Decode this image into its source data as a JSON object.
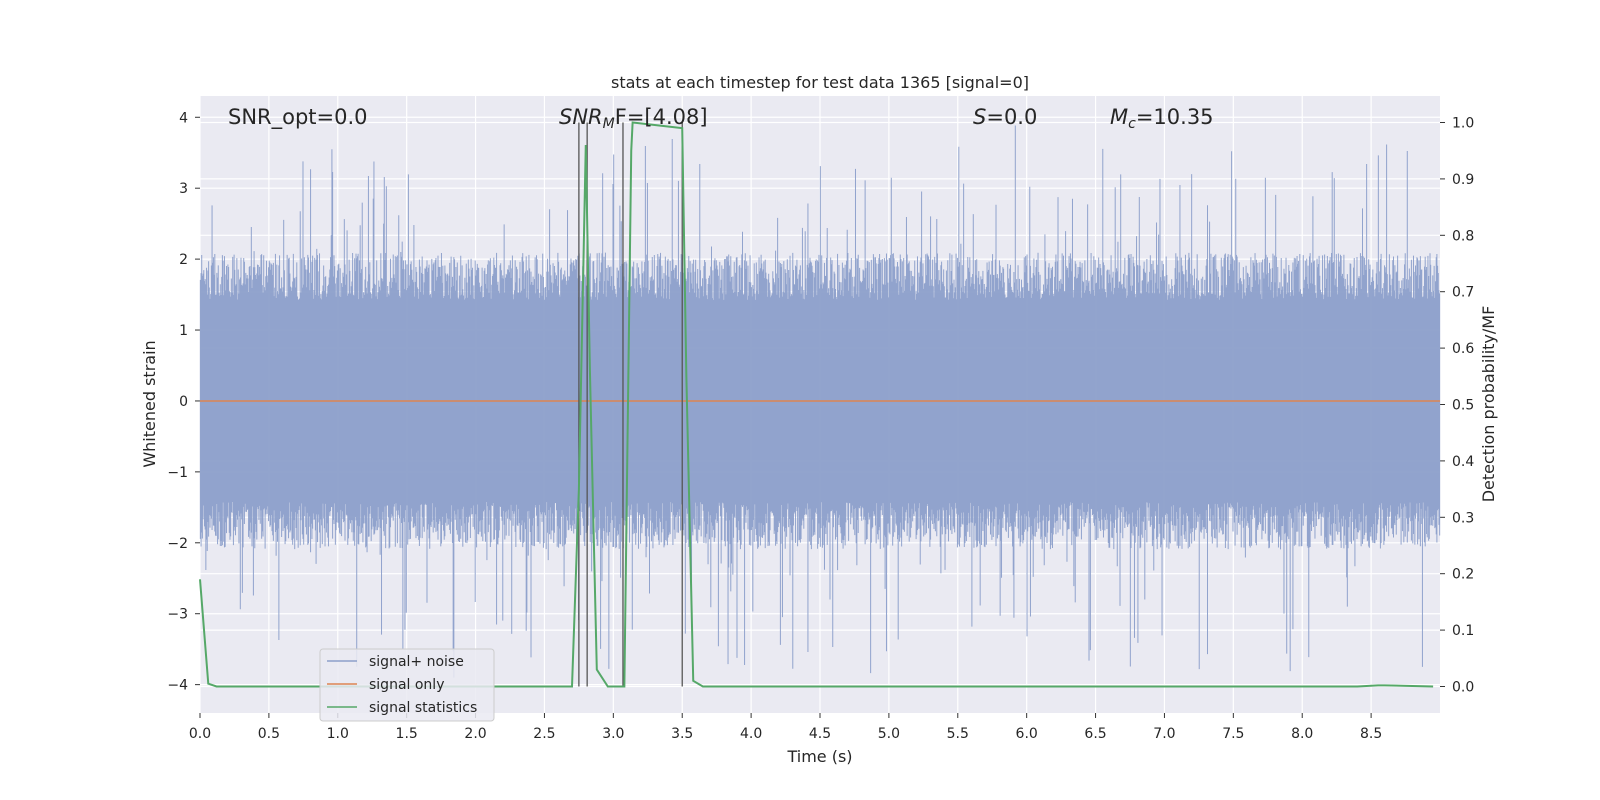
{
  "chart_data": {
    "type": "line",
    "title": "stats at each timestep for test data 1365 [signal=0]",
    "xlabel": "Time (s)",
    "ylabel_left": "Whitened strain",
    "ylabel_right": "Detection probability/MF",
    "xlim": [
      0.0,
      9.0
    ],
    "ylim_left": [
      -4.4,
      4.3
    ],
    "ylim_right": [
      -0.047,
      1.047
    ],
    "x_ticks": [
      "0.0",
      "0.5",
      "1.0",
      "1.5",
      "2.0",
      "2.5",
      "3.0",
      "3.5",
      "4.0",
      "4.5",
      "5.0",
      "5.5",
      "6.0",
      "6.5",
      "7.0",
      "7.5",
      "8.0",
      "8.5"
    ],
    "x_tick_values": [
      0.0,
      0.5,
      1.0,
      1.5,
      2.0,
      2.5,
      3.0,
      3.5,
      4.0,
      4.5,
      5.0,
      5.5,
      6.0,
      6.5,
      7.0,
      7.5,
      8.0,
      8.5
    ],
    "y_left_ticks": [
      "−4",
      "−3",
      "−2",
      "−1",
      "0",
      "1",
      "2",
      "3",
      "4"
    ],
    "y_left_tick_values": [
      -4,
      -3,
      -2,
      -1,
      0,
      1,
      2,
      3,
      4
    ],
    "y_right_ticks": [
      "0.0",
      "0.1",
      "0.2",
      "0.3",
      "0.4",
      "0.5",
      "0.6",
      "0.7",
      "0.8",
      "0.9",
      "1.0"
    ],
    "y_right_tick_values": [
      0.0,
      0.1,
      0.2,
      0.3,
      0.4,
      0.5,
      0.6,
      0.7,
      0.8,
      0.9,
      1.0
    ],
    "grid": true,
    "legend_position": "lower-left",
    "annotations": {
      "snr_opt": "SNR_opt=0.0",
      "snr_mf_main": "SNR",
      "snr_mf_sub": "M",
      "snr_mf_rest": "F=[4.08]",
      "s_var": "S",
      "s_rest": "=0.0",
      "mc_var": "M",
      "mc_sub": "c",
      "mc_rest": "=10.35"
    },
    "series": [
      {
        "name": "signal+ noise",
        "color": "#8c9fca",
        "axis": "left",
        "envelope": {
          "typical_amplitude": 1.9,
          "peak_amplitude": 3.9
        }
      },
      {
        "name": "signal only",
        "color": "#dd8452",
        "axis": "left",
        "values_constant": 0.0
      },
      {
        "name": "signal statistics",
        "color": "#55a868",
        "axis": "right",
        "x": [
          0.0,
          0.06,
          0.12,
          2.7,
          2.75,
          2.8,
          2.83,
          2.88,
          2.96,
          3.08,
          3.13,
          3.14,
          3.5,
          3.53,
          3.58,
          3.65,
          8.4,
          8.55,
          8.6,
          8.95
        ],
        "y": [
          0.19,
          0.005,
          0.0,
          0.0,
          0.35,
          0.96,
          0.56,
          0.03,
          0.0,
          0.0,
          0.95,
          1.0,
          0.99,
          0.55,
          0.01,
          0.0,
          0.0,
          0.002,
          0.002,
          0.0
        ]
      }
    ],
    "vertical_lines": [
      {
        "x": 2.75,
        "y_from": -0.0,
        "y_to": 1.0,
        "color": "#555555"
      },
      {
        "x": 2.81,
        "y_from": -0.0,
        "y_to": 1.0,
        "color": "#555555"
      },
      {
        "x": 3.07,
        "y_from": -0.0,
        "y_to": 1.0,
        "color": "#555555"
      },
      {
        "x": 3.5,
        "y_from": -0.0,
        "y_to": 1.0,
        "color": "#555555"
      }
    ],
    "legend": [
      "signal+ noise",
      "signal only",
      "signal statistics"
    ]
  }
}
